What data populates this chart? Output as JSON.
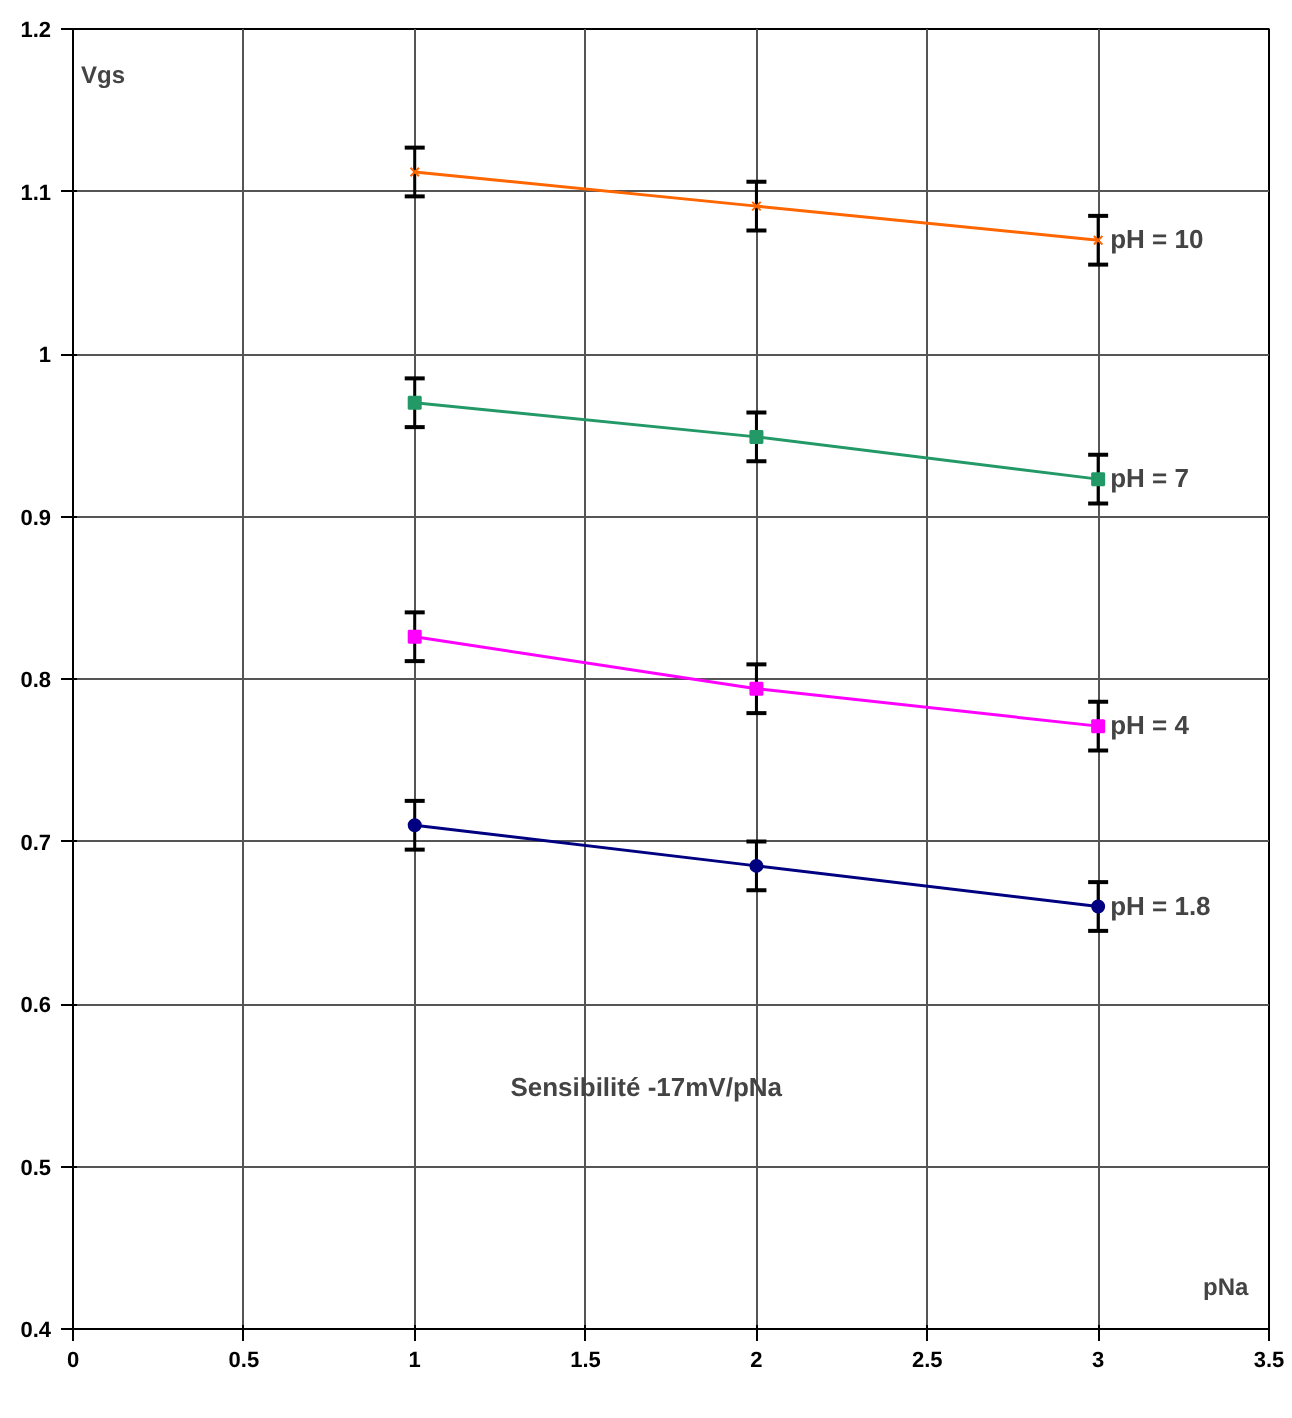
{
  "chart_data": {
    "type": "line",
    "xlabel": "pNa",
    "ylabel": "Vgs",
    "x": [
      1,
      2,
      3
    ],
    "series": [
      {
        "name": "pH = 10",
        "color": "#ff6600",
        "values": [
          1.112,
          1.091,
          1.07
        ],
        "errors": [
          0.015,
          0.015,
          0.015
        ],
        "marker": "cross"
      },
      {
        "name": "pH = 7",
        "color": "#229966",
        "values": [
          0.97,
          0.949,
          0.923
        ],
        "errors": [
          0.015,
          0.015,
          0.015
        ],
        "marker": "square"
      },
      {
        "name": "pH = 4",
        "color": "#ff00ff",
        "values": [
          0.826,
          0.794,
          0.771
        ],
        "errors": [
          0.015,
          0.015,
          0.015
        ],
        "marker": "square"
      },
      {
        "name": "pH = 1.8",
        "color": "#000080",
        "values": [
          0.71,
          0.685,
          0.66
        ],
        "errors": [
          0.015,
          0.015,
          0.015
        ],
        "marker": "circle"
      }
    ],
    "annotations": [
      "Sensibilité -17mV/pNa"
    ],
    "xlim": [
      0,
      3.5
    ],
    "xticks": [
      0,
      0.5,
      1,
      1.5,
      2,
      2.5,
      3,
      3.5
    ],
    "ylim": [
      0.4,
      1.2
    ],
    "yticks": [
      0.4,
      0.5,
      0.6,
      0.7,
      0.8,
      0.9,
      1,
      1.1,
      1.2
    ],
    "grid": true,
    "legend": false,
    "line_style": "solid"
  }
}
